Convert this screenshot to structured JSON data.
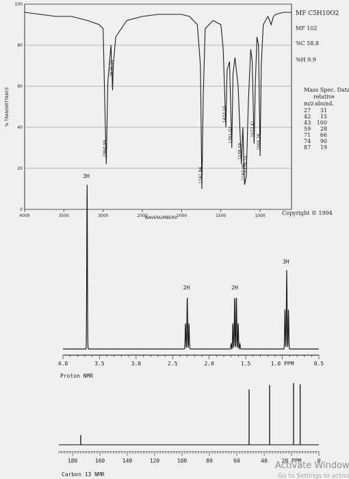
{
  "chart_data": [
    {
      "type": "line",
      "yaxis_label": "% TRANSMITTANCE",
      "xlabel": "WAVENUMBERS",
      "x_ticks": [
        "4000",
        "3500",
        "3000",
        "2500",
        "2000",
        "1500",
        "1000"
      ],
      "y_ticks": [
        "100",
        "80",
        "60",
        "40",
        "20",
        "0"
      ],
      "xlim": [
        4000,
        600
      ],
      "ylim": [
        0,
        100
      ],
      "copyright": "Copyright © 1994",
      "peak_labels": [
        {
          "x": 2960.99,
          "label": "2960.99"
        },
        {
          "x": 2876.15,
          "label": "2876.15"
        },
        {
          "x": 1741.84,
          "label": "1741.84"
        },
        {
          "x": 1437.15,
          "label": "1437.15"
        },
        {
          "x": 1361.02,
          "label": "1361.02"
        },
        {
          "x": 1239.09,
          "label": "1239.09"
        },
        {
          "x": 1197.95,
          "label": "1197.95"
        },
        {
          "x": 1176.72,
          "label": "1176.72"
        },
        {
          "x": 1077.61,
          "label": "1077.61"
        },
        {
          "x": 1000.26,
          "label": "1000.26"
        }
      ],
      "spectrum": [
        [
          4000,
          96
        ],
        [
          3800,
          95
        ],
        [
          3600,
          94
        ],
        [
          3400,
          94
        ],
        [
          3200,
          92
        ],
        [
          3050,
          90
        ],
        [
          3000,
          88
        ],
        [
          2975,
          45
        ],
        [
          2960,
          22
        ],
        [
          2940,
          62
        ],
        [
          2900,
          80
        ],
        [
          2880,
          58
        ],
        [
          2870,
          70
        ],
        [
          2840,
          84
        ],
        [
          2700,
          92
        ],
        [
          2500,
          94
        ],
        [
          2300,
          95
        ],
        [
          2100,
          95
        ],
        [
          2000,
          95
        ],
        [
          1900,
          94
        ],
        [
          1800,
          90
        ],
        [
          1760,
          70
        ],
        [
          1742,
          10
        ],
        [
          1725,
          55
        ],
        [
          1700,
          88
        ],
        [
          1600,
          92
        ],
        [
          1500,
          90
        ],
        [
          1470,
          78
        ],
        [
          1437,
          40
        ],
        [
          1420,
          68
        ],
        [
          1390,
          72
        ],
        [
          1361,
          30
        ],
        [
          1345,
          66
        ],
        [
          1320,
          74
        ],
        [
          1280,
          60
        ],
        [
          1239,
          22
        ],
        [
          1220,
          40
        ],
        [
          1198,
          12
        ],
        [
          1176,
          16
        ],
        [
          1150,
          52
        ],
        [
          1120,
          78
        ],
        [
          1100,
          72
        ],
        [
          1077,
          32
        ],
        [
          1060,
          62
        ],
        [
          1040,
          84
        ],
        [
          1020,
          80
        ],
        [
          1000,
          26
        ],
        [
          985,
          70
        ],
        [
          960,
          90
        ],
        [
          900,
          94
        ],
        [
          860,
          90
        ],
        [
          830,
          94
        ],
        [
          800,
          95
        ],
        [
          700,
          96
        ],
        [
          600,
          96
        ]
      ]
    },
    {
      "type": "line",
      "xlabel": "Proton NMR",
      "x_ticks": [
        "4.0",
        "3.5",
        "3.0",
        "2.5",
        "2.0",
        "1.5",
        "1.0 PPM",
        "0.5"
      ],
      "xlim": [
        4.0,
        0.5
      ],
      "peaks": [
        {
          "ppm": 3.67,
          "integration": "3H",
          "multiplicity": "singlet"
        },
        {
          "ppm": 2.3,
          "integration": "2H",
          "multiplicity": "triplet"
        },
        {
          "ppm": 1.64,
          "integration": "2H",
          "multiplicity": "sextet"
        },
        {
          "ppm": 0.94,
          "integration": "3H",
          "multiplicity": "triplet"
        }
      ]
    },
    {
      "type": "bar",
      "xlabel": "Carbon 13 NMR",
      "x_ticks": [
        "180",
        "160",
        "140",
        "120",
        "100",
        "80",
        "60",
        "40",
        "20 PPM",
        "0"
      ],
      "xlim": [
        190,
        0
      ],
      "peaks": [
        {
          "ppm": 174,
          "height": 0.15
        },
        {
          "ppm": 51,
          "height": 0.85
        },
        {
          "ppm": 36,
          "height": 0.92
        },
        {
          "ppm": 18.5,
          "height": 0.95
        },
        {
          "ppm": 13.7,
          "height": 0.93
        }
      ]
    }
  ],
  "info": {
    "mf": "MF C5H10O2",
    "mw": "MF 102",
    "pc": "%C 58.8",
    "ph": "%H 9.9"
  },
  "mass_spec": {
    "title": "Mass Spec. Data",
    "sub1": "relative",
    "col_mz": "m/z",
    "col_abund": "abund.",
    "rows": [
      [
        "27",
        "31"
      ],
      [
        "42",
        "15"
      ],
      [
        "43",
        "100"
      ],
      [
        "59",
        "28"
      ],
      [
        "71",
        "66"
      ],
      [
        "74",
        "90"
      ],
      [
        "87",
        "19"
      ]
    ]
  },
  "overlay": {
    "watermark1": "Activate Windows",
    "watermark2": "Go to Settings to activate"
  },
  "colors": {
    "ink": "#1b1b1b",
    "paper": "#f1f0ee",
    "grid": "#6a6a6a"
  }
}
